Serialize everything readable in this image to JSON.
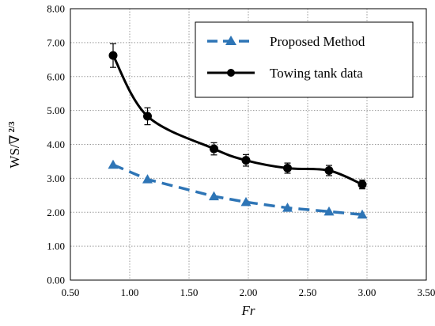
{
  "chart_data": {
    "type": "line",
    "title": "",
    "xlabel": "Fr",
    "ylabel": "WS/∇",
    "ylabel_superscript": "2/3",
    "xlim": [
      0.5,
      3.5
    ],
    "ylim": [
      0,
      8
    ],
    "x_ticks": [
      "0.50",
      "1.00",
      "1.50",
      "2.00",
      "2.50",
      "3.00",
      "3.50"
    ],
    "y_ticks": [
      "0.00",
      "1.00",
      "2.00",
      "3.00",
      "4.00",
      "5.00",
      "6.00",
      "7.00",
      "8.00"
    ],
    "grid": "dotted",
    "legend_position": "top-right",
    "series": [
      {
        "name": "Proposed Method",
        "color": "#2e75b6",
        "line_style": "dashed",
        "marker": "triangle",
        "x": [
          0.86,
          1.15,
          1.71,
          1.98,
          2.33,
          2.68,
          2.96
        ],
        "y": [
          3.4,
          2.97,
          2.47,
          2.3,
          2.13,
          2.02,
          1.93
        ]
      },
      {
        "name": "Towing tank data",
        "color": "#000000",
        "line_style": "solid",
        "marker": "circle",
        "x": [
          0.86,
          1.15,
          1.71,
          1.98,
          2.33,
          2.68,
          2.96
        ],
        "y": [
          6.62,
          4.83,
          3.87,
          3.53,
          3.3,
          3.23,
          2.82
        ],
        "error": [
          0.35,
          0.25,
          0.18,
          0.17,
          0.15,
          0.15,
          0.13
        ]
      }
    ]
  }
}
